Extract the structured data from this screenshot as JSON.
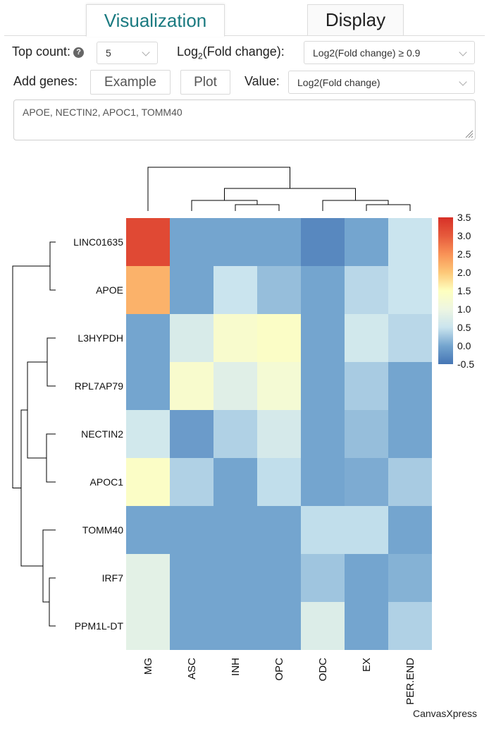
{
  "tabs": [
    {
      "label": "Visualization",
      "active": true
    },
    {
      "label": "Display",
      "active": false
    }
  ],
  "controls": {
    "top_count_label": "Top count:",
    "top_count_value": "5",
    "fold_change_label_main": "Log",
    "fold_change_label_sub": "2",
    "fold_change_label_rest": "(Fold change):",
    "fold_change_value": "Log2(Fold change) ≥ 0.9",
    "add_genes_label": "Add genes:",
    "example_button": "Example",
    "plot_button": "Plot",
    "value_label": "Value:",
    "value_select": "Log2(Fold change)",
    "genes_input": "APOE, NECTIN2, APOC1, TOMM40"
  },
  "chart_data": {
    "type": "heatmap",
    "rows": [
      "LINC01635",
      "APOE",
      "L3HYPDH",
      "RPL7AP79",
      "NECTIN2",
      "APOC1",
      "TOMM40",
      "IRF7",
      "PPM1L-DT"
    ],
    "columns": [
      "MG",
      "ASC",
      "INH",
      "OPC",
      "ODC",
      "EX",
      "PER.END"
    ],
    "values": [
      [
        3.2,
        0.0,
        0.0,
        0.0,
        -0.3,
        0.0,
        0.5
      ],
      [
        2.2,
        0.0,
        0.5,
        0.2,
        0.0,
        0.4,
        0.5
      ],
      [
        0.0,
        0.7,
        1.3,
        1.4,
        0.0,
        0.6,
        0.4
      ],
      [
        0.0,
        1.3,
        0.8,
        1.2,
        0.0,
        0.3,
        0.0
      ],
      [
        0.6,
        -0.1,
        0.35,
        0.65,
        0.0,
        0.2,
        0.0
      ],
      [
        1.4,
        0.35,
        0.0,
        0.45,
        0.0,
        0.05,
        0.3
      ],
      [
        0.0,
        0.0,
        0.0,
        0.0,
        0.45,
        0.45,
        0.0
      ],
      [
        0.85,
        0.0,
        0.0,
        0.0,
        0.25,
        0.0,
        0.1
      ],
      [
        0.85,
        0.0,
        0.0,
        0.0,
        0.75,
        0.0,
        0.35
      ]
    ],
    "colorscale": {
      "min": -0.5,
      "max": 3.5,
      "ticks": [
        "3.5",
        "3.0",
        "2.5",
        "2.0",
        "1.5",
        "1.0",
        "0.5",
        "0.0",
        "-0.5"
      ]
    },
    "watermark": "CanvasXpress"
  }
}
